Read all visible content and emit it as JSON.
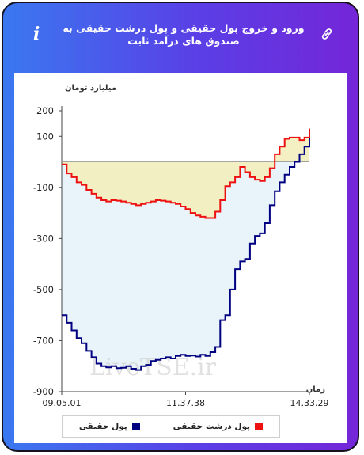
{
  "header": {
    "title": "ورود و خروج پول حقیقی و پول درشت حقیقی به صندوق های درآمد ثابت",
    "info_icon": "info-icon",
    "link_icon": "link-icon"
  },
  "colors": {
    "real_money": "#000080",
    "big_real_money": "#ee1111",
    "real_money_fill": "#e9f3fa",
    "big_real_money_fill": "#f3edb8"
  },
  "watermark": "LiveTSE.ir",
  "chart_data": {
    "type": "area",
    "ylabel": "میلیارد تومان",
    "xlabel": "زمان",
    "ylim": [
      -900,
      200
    ],
    "yticks": [
      200,
      100,
      -100,
      -300,
      -500,
      -700,
      -900
    ],
    "x_tick_labels": [
      "09.05.01",
      "11.37.38",
      "14.33.29"
    ],
    "x": [
      0,
      2,
      4,
      6,
      8,
      10,
      12,
      14,
      16,
      18,
      20,
      22,
      24,
      26,
      28,
      30,
      32,
      34,
      36,
      38,
      40,
      42,
      44,
      46,
      48,
      50,
      52,
      54,
      56,
      58,
      60,
      62,
      64,
      66,
      68,
      70,
      72,
      74,
      76,
      78,
      80,
      82,
      84,
      86,
      88,
      90,
      92,
      94,
      96,
      98,
      100
    ],
    "series": [
      {
        "name": "پول حقیقی",
        "values": [
          -600,
          -630,
          -660,
          -690,
          -710,
          -740,
          -765,
          -790,
          -800,
          -805,
          -800,
          -808,
          -806,
          -800,
          -810,
          -815,
          -800,
          -795,
          -780,
          -775,
          -770,
          -765,
          -770,
          -760,
          -755,
          -760,
          -758,
          -762,
          -755,
          -760,
          -745,
          -725,
          -620,
          -600,
          -500,
          -420,
          -390,
          -380,
          -320,
          -290,
          -280,
          -240,
          -170,
          -115,
          -80,
          -50,
          -20,
          0,
          30,
          60,
          100
        ]
      },
      {
        "name": "پول درشت حقیقی",
        "values": [
          -10,
          -45,
          -60,
          -80,
          -90,
          -110,
          -125,
          -140,
          -150,
          -155,
          -150,
          -152,
          -155,
          -160,
          -165,
          -170,
          -165,
          -160,
          -155,
          -150,
          -152,
          -155,
          -160,
          -165,
          -175,
          -185,
          -200,
          -210,
          -215,
          -220,
          -220,
          -195,
          -150,
          -95,
          -80,
          -60,
          -20,
          -40,
          -60,
          -70,
          -75,
          -60,
          -25,
          30,
          60,
          90,
          95,
          95,
          85,
          95,
          130
        ]
      }
    ],
    "legend_position": "bottom",
    "grid": false
  }
}
